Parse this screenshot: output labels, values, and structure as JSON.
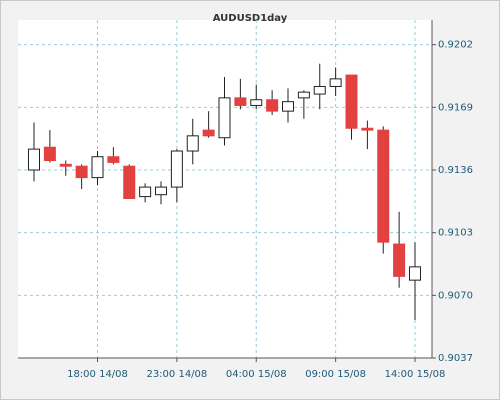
{
  "chart_data": {
    "type": "candlestick",
    "title": "AUDUSD1day",
    "categories": [
      null,
      null,
      null,
      null,
      "18:00 14/08",
      null,
      null,
      null,
      null,
      "23:00 14/08",
      null,
      null,
      null,
      null,
      "04:00 15/08",
      null,
      null,
      null,
      null,
      "09:00 15/08",
      null,
      null,
      null,
      null,
      "14:00 15/08"
    ],
    "open": [
      0.9136,
      0.9148,
      0.9139,
      0.9138,
      0.9132,
      0.9143,
      0.9138,
      0.9122,
      0.9123,
      0.9127,
      0.9146,
      0.9157,
      0.9153,
      0.9174,
      0.917,
      0.9173,
      0.9167,
      0.9174,
      0.9176,
      0.918,
      0.9186,
      0.9158,
      0.9157,
      0.9097,
      0.9078
    ],
    "high": [
      0.9161,
      0.9157,
      0.9141,
      0.9139,
      0.9146,
      0.9148,
      0.9139,
      0.9129,
      0.913,
      0.9147,
      0.9163,
      0.9167,
      0.9185,
      0.9184,
      0.9181,
      0.9178,
      0.9179,
      0.9178,
      0.9192,
      0.919,
      0.9186,
      0.9162,
      0.9159,
      0.9114,
      0.9098
    ],
    "low": [
      0.913,
      0.914,
      0.9133,
      0.9126,
      0.9128,
      0.9139,
      0.9121,
      0.9119,
      0.9118,
      0.9119,
      0.9139,
      0.9153,
      0.9149,
      0.9168,
      0.9168,
      0.9165,
      0.9161,
      0.9163,
      0.9168,
      0.9175,
      0.9152,
      0.9147,
      0.9092,
      0.9074,
      0.9057
    ],
    "close": [
      0.9147,
      0.9141,
      0.9138,
      0.9132,
      0.9143,
      0.914,
      0.9121,
      0.9127,
      0.9127,
      0.9146,
      0.9154,
      0.9154,
      0.9174,
      0.917,
      0.9173,
      0.9167,
      0.9172,
      0.9177,
      0.918,
      0.9184,
      0.9158,
      0.9157,
      0.9098,
      0.908,
      0.9085
    ],
    "up_color": "#ffffff",
    "down_color": "#e34040",
    "ylim": [
      0.9037,
      0.9215
    ],
    "yticks": [
      0.9037,
      {
        "value": 0.907,
        "label": "0.9070"
      },
      0.9103,
      0.9136,
      0.9169,
      0.9202
    ],
    "grid": true
  }
}
